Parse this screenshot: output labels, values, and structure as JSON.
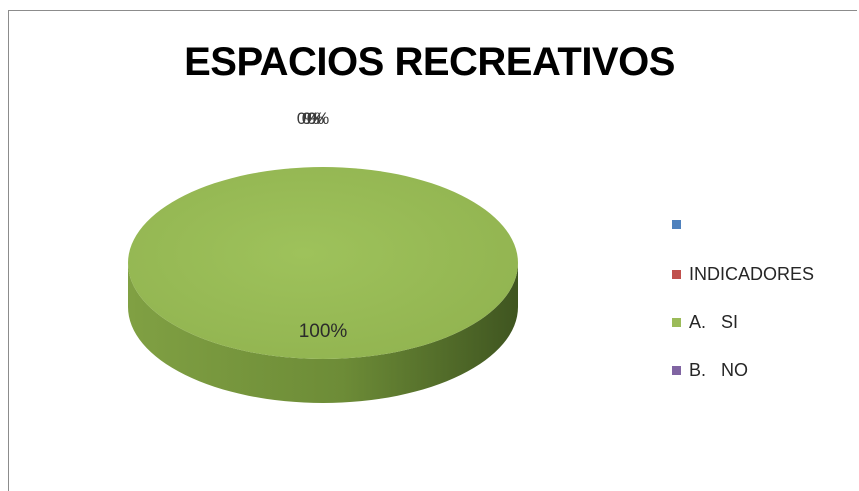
{
  "chart_data": {
    "type": "pie",
    "title": "ESPACIOS RECREATIVOS",
    "three_d": true,
    "legend_position": "right",
    "series": [
      {
        "name": "",
        "value": 0,
        "label": "0%",
        "color": "#4F81BD"
      },
      {
        "name": "INDICADORES",
        "value": 0,
        "label": "0%",
        "color": "#C0504D"
      },
      {
        "name": "A.   SI",
        "value": 100,
        "label": "100%",
        "color": "#9BBB59"
      },
      {
        "name": "B.   NO",
        "value": 0,
        "label": "0%",
        "color": "#8064A2"
      }
    ]
  }
}
